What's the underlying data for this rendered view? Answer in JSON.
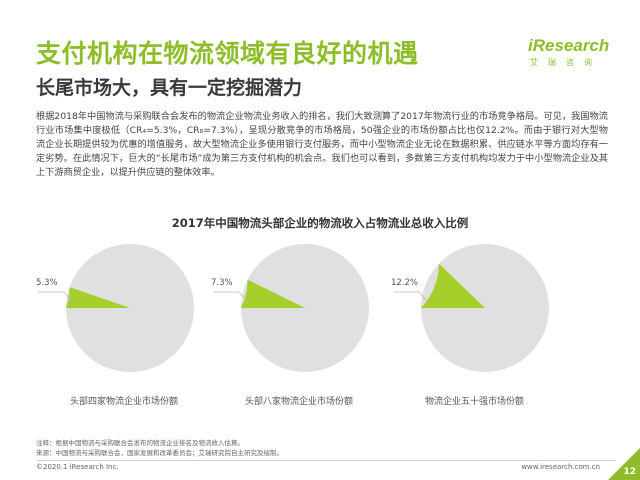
{
  "header": {
    "title": "支付机构在物流领域有良好的机遇",
    "subtitle": "长尾市场大，具有一定挖掘潜力",
    "logo_main": "iResearch",
    "logo_sub": "艾瑞咨询"
  },
  "body_text": "根据2018年中国物流与采购联合会发布的物流企业物流业务收入的排名，我们大致测算了2017年物流行业的市场竞争格局。可见，我国物流行业市场集中度极低（CR₄=5.3%，CR₈=7.3%），呈现分散竞争的市场格局，50强企业的市场份额占比也仅12.2%。而由于银行对大型物流企业长期提供较为优惠的增值服务，故大型物流企业多使用银行支付服务，而中小型物流企业无论在数据积累、供应链水平等方面均存有一定劣势。在此情况下，巨大的“长尾市场”成为第三方支付机构的机会点。我们也可以看到，多数第三方支付机构均发力于中小型物流企业及其上下游商贸企业，以提升供应链的整体效率。",
  "chart_data": [
    {
      "type": "pie",
      "title": "2017年中国物流头部企业的物流收入占物流业总收入比例",
      "label": "头部四家物流企业市场份额",
      "slices": [
        {
          "value": 5.3,
          "label": "5.3%",
          "color": "#a5cf2a"
        },
        {
          "value": 94.7,
          "color": "#e0e0e0"
        }
      ]
    },
    {
      "type": "pie",
      "label": "头部八家物流企业市场份额",
      "slices": [
        {
          "value": 7.3,
          "label": "7.3%",
          "color": "#a5cf2a"
        },
        {
          "value": 92.7,
          "color": "#e0e0e0"
        }
      ]
    },
    {
      "type": "pie",
      "label": "物流企业五十强市场份额",
      "slices": [
        {
          "value": 12.2,
          "label": "12.2%",
          "color": "#a5cf2a"
        },
        {
          "value": 87.8,
          "color": "#e0e0e0"
        }
      ]
    }
  ],
  "notes": {
    "line1": "注释：根据中国物流与采购联合会发布的物流企业排名及物流收入估算。",
    "line2": "来源：中国物流与采购联合会，国家发展和改革委员会；艾瑞研究院自主研究及绘制。"
  },
  "footer": {
    "copyright": "©2020.1 iResearch Inc.",
    "website": "www.iresearch.com.cn",
    "page": "12"
  },
  "colors": {
    "brand": "#8dbe2a",
    "slice": "#a5cf2a",
    "pie_bg": "#e0e0e0"
  }
}
